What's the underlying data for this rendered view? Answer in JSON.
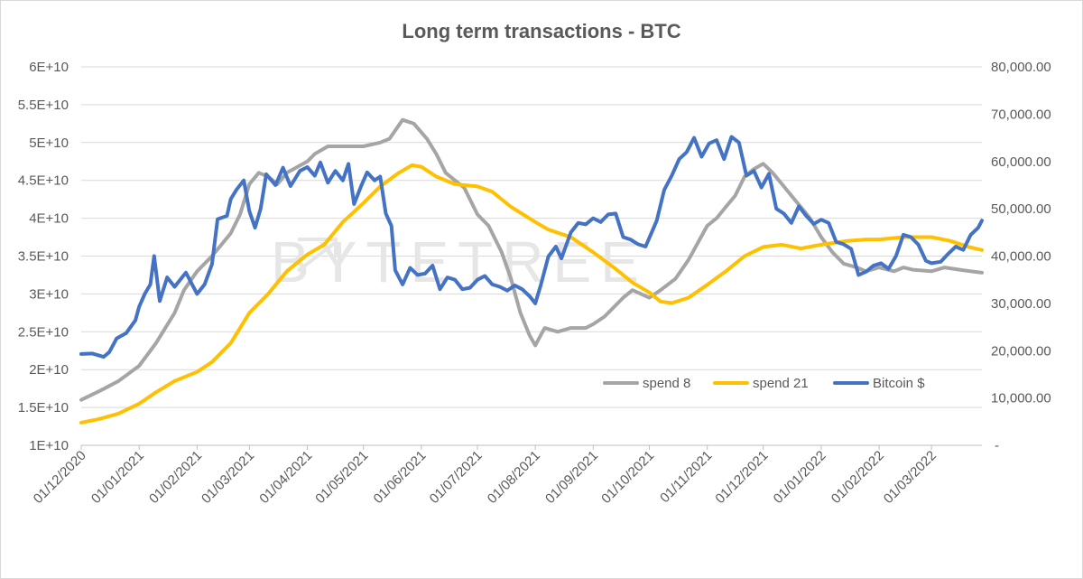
{
  "chart_data": {
    "type": "line",
    "title": "Long term transactions - BTC",
    "watermark": "BYTETREE",
    "left_axis": {
      "min": 10000000000.0,
      "max": 60000000000.0,
      "ticks": [
        "1E+10",
        "1.5E+10",
        "2E+10",
        "2.5E+10",
        "3E+10",
        "3.5E+10",
        "4E+10",
        "4.5E+10",
        "5E+10",
        "5.5E+10",
        "6E+10"
      ]
    },
    "right_axis": {
      "min": 0,
      "max": 80000,
      "ticks": [
        "-",
        "10,000.00",
        "20,000.00",
        "30,000.00",
        "40,000.00",
        "50,000.00",
        "60,000.00",
        "70,000.00",
        "80,000.00"
      ]
    },
    "x_labels": [
      "01/12/2020",
      "01/01/2021",
      "01/02/2021",
      "01/03/2021",
      "01/04/2021",
      "01/05/2021",
      "01/06/2021",
      "01/07/2021",
      "01/08/2021",
      "01/09/2021",
      "01/10/2021",
      "01/11/2021",
      "01/12/2021",
      "01/01/2022",
      "01/02/2022",
      "01/03/2022"
    ],
    "x_day_offsets": [
      0,
      31,
      62,
      90,
      121,
      151,
      182,
      212,
      243,
      274,
      304,
      335,
      365,
      396,
      427,
      455
    ],
    "x_max_day": 482,
    "legend": {
      "position": "lower-right"
    },
    "series": [
      {
        "name": "spend 8",
        "axis": "left",
        "color": "#a5a5a5",
        "points": [
          [
            0,
            16000000000.0
          ],
          [
            10,
            17200000000.0
          ],
          [
            20,
            18500000000.0
          ],
          [
            31,
            20500000000.0
          ],
          [
            40,
            23500000000.0
          ],
          [
            50,
            27500000000.0
          ],
          [
            55,
            30500000000.0
          ],
          [
            62,
            33000000000.0
          ],
          [
            70,
            35000000000.0
          ],
          [
            80,
            38000000000.0
          ],
          [
            85,
            40500000000.0
          ],
          [
            90,
            44500000000.0
          ],
          [
            95,
            46000000000.0
          ],
          [
            100,
            45500000000.0
          ],
          [
            105,
            44500000000.0
          ],
          [
            110,
            46000000000.0
          ],
          [
            121,
            47500000000.0
          ],
          [
            125,
            48500000000.0
          ],
          [
            132,
            49500000000.0
          ],
          [
            140,
            49500000000.0
          ],
          [
            151,
            49500000000.0
          ],
          [
            160,
            50000000000.0
          ],
          [
            165,
            50500000000.0
          ],
          [
            172,
            53000000000.0
          ],
          [
            178,
            52500000000.0
          ],
          [
            185,
            50500000000.0
          ],
          [
            190,
            48500000000.0
          ],
          [
            195,
            46000000000.0
          ],
          [
            200,
            45000000000.0
          ],
          [
            205,
            44000000000.0
          ],
          [
            212,
            40500000000.0
          ],
          [
            218,
            39000000000.0
          ],
          [
            225,
            35500000000.0
          ],
          [
            230,
            32000000000.0
          ],
          [
            235,
            27500000000.0
          ],
          [
            240,
            24500000000.0
          ],
          [
            243,
            23200000000.0
          ],
          [
            248,
            25500000000.0
          ],
          [
            255,
            25000000000.0
          ],
          [
            262,
            25500000000.0
          ],
          [
            270,
            25500000000.0
          ],
          [
            274,
            26000000000.0
          ],
          [
            280,
            27000000000.0
          ],
          [
            290,
            29500000000.0
          ],
          [
            295,
            30500000000.0
          ],
          [
            304,
            29500000000.0
          ],
          [
            310,
            30500000000.0
          ],
          [
            318,
            32000000000.0
          ],
          [
            325,
            34500000000.0
          ],
          [
            335,
            39000000000.0
          ],
          [
            340,
            40000000000.0
          ],
          [
            345,
            41500000000.0
          ],
          [
            350,
            43000000000.0
          ],
          [
            355,
            45500000000.0
          ],
          [
            360,
            46500000000.0
          ],
          [
            365,
            47200000000.0
          ],
          [
            370,
            46000000000.0
          ],
          [
            375,
            44500000000.0
          ],
          [
            380,
            43000000000.0
          ],
          [
            385,
            41500000000.0
          ],
          [
            390,
            40000000000.0
          ],
          [
            396,
            37500000000.0
          ],
          [
            402,
            35500000000.0
          ],
          [
            408,
            34000000000.0
          ],
          [
            415,
            33500000000.0
          ],
          [
            420,
            33000000000.0
          ],
          [
            427,
            33500000000.0
          ],
          [
            435,
            33000000000.0
          ],
          [
            440,
            33500000000.0
          ],
          [
            445,
            33200000000.0
          ],
          [
            455,
            33000000000.0
          ],
          [
            462,
            33500000000.0
          ],
          [
            470,
            33200000000.0
          ],
          [
            476,
            33000000000.0
          ],
          [
            482,
            32800000000.0
          ]
        ]
      },
      {
        "name": "spend 21",
        "axis": "left",
        "color": "#ffc000",
        "points": [
          [
            0,
            13000000000.0
          ],
          [
            10,
            13500000000.0
          ],
          [
            20,
            14200000000.0
          ],
          [
            31,
            15500000000.0
          ],
          [
            40,
            17000000000.0
          ],
          [
            50,
            18500000000.0
          ],
          [
            62,
            19700000000.0
          ],
          [
            70,
            21000000000.0
          ],
          [
            80,
            23500000000.0
          ],
          [
            90,
            27500000000.0
          ],
          [
            100,
            30000000000.0
          ],
          [
            110,
            33000000000.0
          ],
          [
            121,
            35200000000.0
          ],
          [
            130,
            36500000000.0
          ],
          [
            140,
            39500000000.0
          ],
          [
            151,
            42000000000.0
          ],
          [
            160,
            44200000000.0
          ],
          [
            170,
            46000000000.0
          ],
          [
            177,
            47000000000.0
          ],
          [
            182,
            46800000000.0
          ],
          [
            190,
            45500000000.0
          ],
          [
            200,
            44500000000.0
          ],
          [
            212,
            44200000000.0
          ],
          [
            220,
            43500000000.0
          ],
          [
            230,
            41500000000.0
          ],
          [
            243,
            39500000000.0
          ],
          [
            250,
            38500000000.0
          ],
          [
            262,
            37500000000.0
          ],
          [
            274,
            35500000000.0
          ],
          [
            285,
            33500000000.0
          ],
          [
            295,
            31500000000.0
          ],
          [
            304,
            30200000000.0
          ],
          [
            310,
            29000000000.0
          ],
          [
            316,
            28800000000.0
          ],
          [
            325,
            29500000000.0
          ],
          [
            335,
            31200000000.0
          ],
          [
            345,
            33000000000.0
          ],
          [
            355,
            35000000000.0
          ],
          [
            365,
            36200000000.0
          ],
          [
            375,
            36500000000.0
          ],
          [
            385,
            36000000000.0
          ],
          [
            396,
            36500000000.0
          ],
          [
            410,
            37000000000.0
          ],
          [
            420,
            37200000000.0
          ],
          [
            427,
            37200000000.0
          ],
          [
            440,
            37500000000.0
          ],
          [
            455,
            37500000000.0
          ],
          [
            465,
            37000000000.0
          ],
          [
            475,
            36200000000.0
          ],
          [
            482,
            35800000000.0
          ]
        ]
      },
      {
        "name": "Bitcoin $",
        "axis": "right",
        "color": "#4472c4",
        "points": [
          [
            0,
            19300
          ],
          [
            6,
            19400
          ],
          [
            12,
            18700
          ],
          [
            15,
            19700
          ],
          [
            19,
            22600
          ],
          [
            24,
            23700
          ],
          [
            29,
            26400
          ],
          [
            31,
            29300
          ],
          [
            34,
            32000
          ],
          [
            37,
            34000
          ],
          [
            39,
            40000
          ],
          [
            42,
            30500
          ],
          [
            46,
            35500
          ],
          [
            50,
            33500
          ],
          [
            56,
            36500
          ],
          [
            62,
            32000
          ],
          [
            66,
            34000
          ],
          [
            70,
            38300
          ],
          [
            73,
            47800
          ],
          [
            78,
            48500
          ],
          [
            80,
            52000
          ],
          [
            83,
            54000
          ],
          [
            87,
            56000
          ],
          [
            90,
            49500
          ],
          [
            93,
            46000
          ],
          [
            96,
            50000
          ],
          [
            99,
            57300
          ],
          [
            104,
            55000
          ],
          [
            108,
            58700
          ],
          [
            112,
            54800
          ],
          [
            117,
            58000
          ],
          [
            121,
            58800
          ],
          [
            125,
            57000
          ],
          [
            128,
            59800
          ],
          [
            132,
            55500
          ],
          [
            136,
            58000
          ],
          [
            140,
            56000
          ],
          [
            143,
            59500
          ],
          [
            146,
            51000
          ],
          [
            150,
            55000
          ],
          [
            153,
            57700
          ],
          [
            157,
            56000
          ],
          [
            160,
            56800
          ],
          [
            163,
            49000
          ],
          [
            166,
            46400
          ],
          [
            168,
            37000
          ],
          [
            172,
            34000
          ],
          [
            176,
            37500
          ],
          [
            180,
            36000
          ],
          [
            184,
            36300
          ],
          [
            188,
            38000
          ],
          [
            192,
            33000
          ],
          [
            196,
            35500
          ],
          [
            200,
            35000
          ],
          [
            204,
            33000
          ],
          [
            208,
            33300
          ],
          [
            212,
            35000
          ],
          [
            216,
            35800
          ],
          [
            220,
            34000
          ],
          [
            224,
            33500
          ],
          [
            228,
            32700
          ],
          [
            232,
            33800
          ],
          [
            236,
            33000
          ],
          [
            240,
            31500
          ],
          [
            243,
            30000
          ],
          [
            246,
            34000
          ],
          [
            250,
            39900
          ],
          [
            254,
            42000
          ],
          [
            257,
            39500
          ],
          [
            262,
            45000
          ],
          [
            266,
            47000
          ],
          [
            270,
            46700
          ],
          [
            274,
            48000
          ],
          [
            278,
            47200
          ],
          [
            282,
            48800
          ],
          [
            286,
            49000
          ],
          [
            290,
            44000
          ],
          [
            294,
            43500
          ],
          [
            298,
            42500
          ],
          [
            302,
            42000
          ],
          [
            304,
            43800
          ],
          [
            308,
            47500
          ],
          [
            312,
            54000
          ],
          [
            316,
            57000
          ],
          [
            320,
            60500
          ],
          [
            324,
            62000
          ],
          [
            328,
            65000
          ],
          [
            332,
            61000
          ],
          [
            336,
            63800
          ],
          [
            340,
            64500
          ],
          [
            344,
            60500
          ],
          [
            348,
            65200
          ],
          [
            352,
            64000
          ],
          [
            356,
            57000
          ],
          [
            360,
            58000
          ],
          [
            364,
            54500
          ],
          [
            368,
            57400
          ],
          [
            372,
            50000
          ],
          [
            376,
            49000
          ],
          [
            380,
            47000
          ],
          [
            384,
            50500
          ],
          [
            388,
            48500
          ],
          [
            392,
            46800
          ],
          [
            396,
            47700
          ],
          [
            400,
            47000
          ],
          [
            404,
            43000
          ],
          [
            408,
            42500
          ],
          [
            412,
            41500
          ],
          [
            416,
            36000
          ],
          [
            420,
            36700
          ],
          [
            424,
            38000
          ],
          [
            428,
            38500
          ],
          [
            432,
            37300
          ],
          [
            436,
            40000
          ],
          [
            440,
            44500
          ],
          [
            444,
            44000
          ],
          [
            448,
            42400
          ],
          [
            452,
            39000
          ],
          [
            455,
            38500
          ],
          [
            460,
            38800
          ],
          [
            464,
            40500
          ],
          [
            468,
            42000
          ],
          [
            472,
            41300
          ],
          [
            476,
            44500
          ],
          [
            480,
            46000
          ],
          [
            482,
            47500
          ]
        ]
      }
    ]
  }
}
